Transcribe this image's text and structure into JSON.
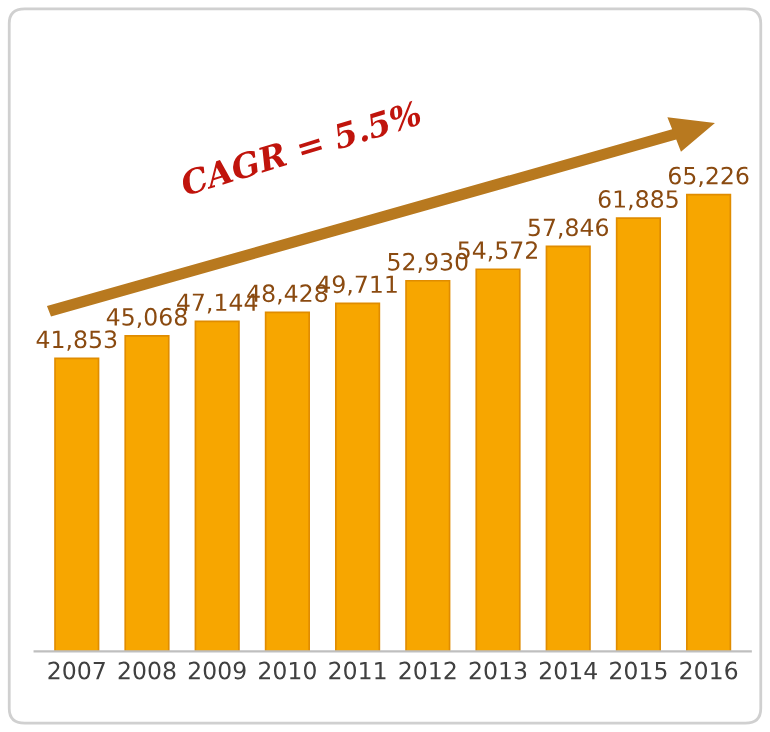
{
  "chart_data": {
    "type": "bar",
    "categories": [
      "2007",
      "2008",
      "2009",
      "2010",
      "2011",
      "2012",
      "2013",
      "2014",
      "2015",
      "2016"
    ],
    "values": [
      41853,
      45068,
      47144,
      48428,
      49711,
      52930,
      54572,
      57846,
      61885,
      65226
    ],
    "value_labels": [
      "41,853",
      "45,068",
      "47,144",
      "48,428",
      "49,711",
      "52,930",
      "54,572",
      "57,846",
      "61,885",
      "65,226"
    ],
    "color": "#f7a600",
    "annotations": [
      "CAGR = 5.5%"
    ],
    "grid": false,
    "legend": false
  }
}
